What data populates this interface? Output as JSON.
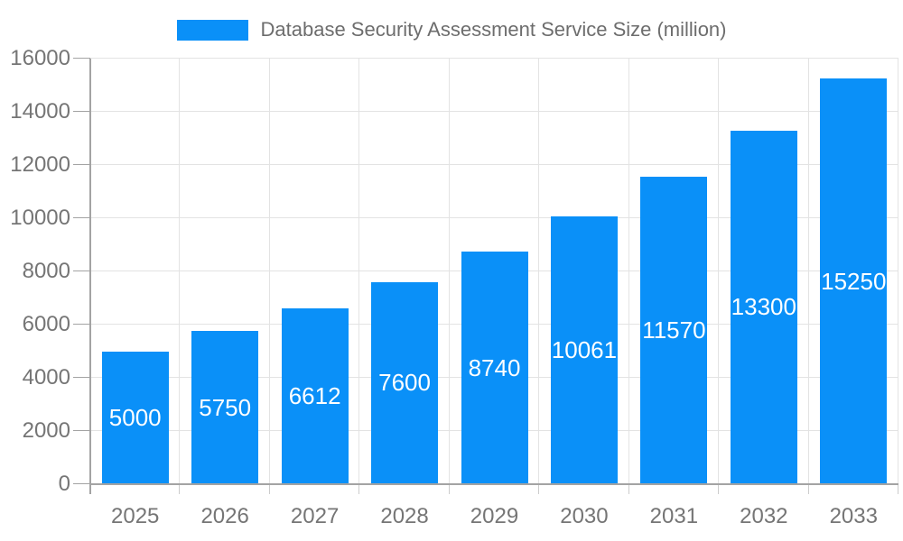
{
  "chart_data": {
    "type": "bar",
    "title": "Database Security Assessment Service Size (million)",
    "legend_position": "top",
    "categories": [
      "2025",
      "2026",
      "2027",
      "2028",
      "2029",
      "2030",
      "2031",
      "2032",
      "2033"
    ],
    "series": [
      {
        "name": "Database Security Assessment Service Size (million)",
        "values": [
          5000,
          5750,
          6612,
          7600,
          8740,
          10061,
          11570,
          13300,
          15250
        ]
      }
    ],
    "bar_labels": [
      "5000",
      "5750",
      "6612",
      "7600",
      "8740",
      "10061",
      "11570",
      "13300",
      "15250"
    ],
    "xlabel": "",
    "ylabel": "",
    "ylim": [
      0,
      16000
    ],
    "yticks": [
      0,
      2000,
      4000,
      6000,
      8000,
      10000,
      12000,
      14000,
      16000
    ],
    "grid": true,
    "colors": {
      "bar": "#0a90f8",
      "bar_label": "#ffffff",
      "grid": "#e3e3e3",
      "axis": "#a3a3a3",
      "minor_tick": "#cccccc",
      "tick_text": "#757575",
      "legend_text": "#6d6d6d",
      "background": "#ffffff"
    }
  }
}
